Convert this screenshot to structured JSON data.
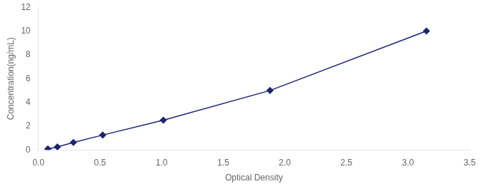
{
  "chart_data": {
    "type": "line",
    "x": [
      0.077,
      0.154,
      0.284,
      0.522,
      1.014,
      1.88,
      3.15
    ],
    "values": [
      0.078,
      0.25,
      0.625,
      1.25,
      2.5,
      5.0,
      10.0
    ],
    "color": "#1a2472",
    "marker": "diamond",
    "xlabel": "Optical Density",
    "ylabel": "Concentration(ng/mL)",
    "xlim": [
      0,
      3.5
    ],
    "ylim": [
      0,
      12
    ],
    "xticks": [
      {
        "value": 0,
        "label": "0.0"
      },
      0.5,
      {
        "value": 1.0,
        "label": "1.0"
      },
      1.5,
      {
        "value": 2.0,
        "label": "2.0"
      },
      2.5,
      {
        "value": 3.0,
        "label": "3.0"
      },
      3.5
    ],
    "yticks": [
      0,
      2,
      4,
      6,
      8,
      10,
      12
    ],
    "grid": false
  }
}
